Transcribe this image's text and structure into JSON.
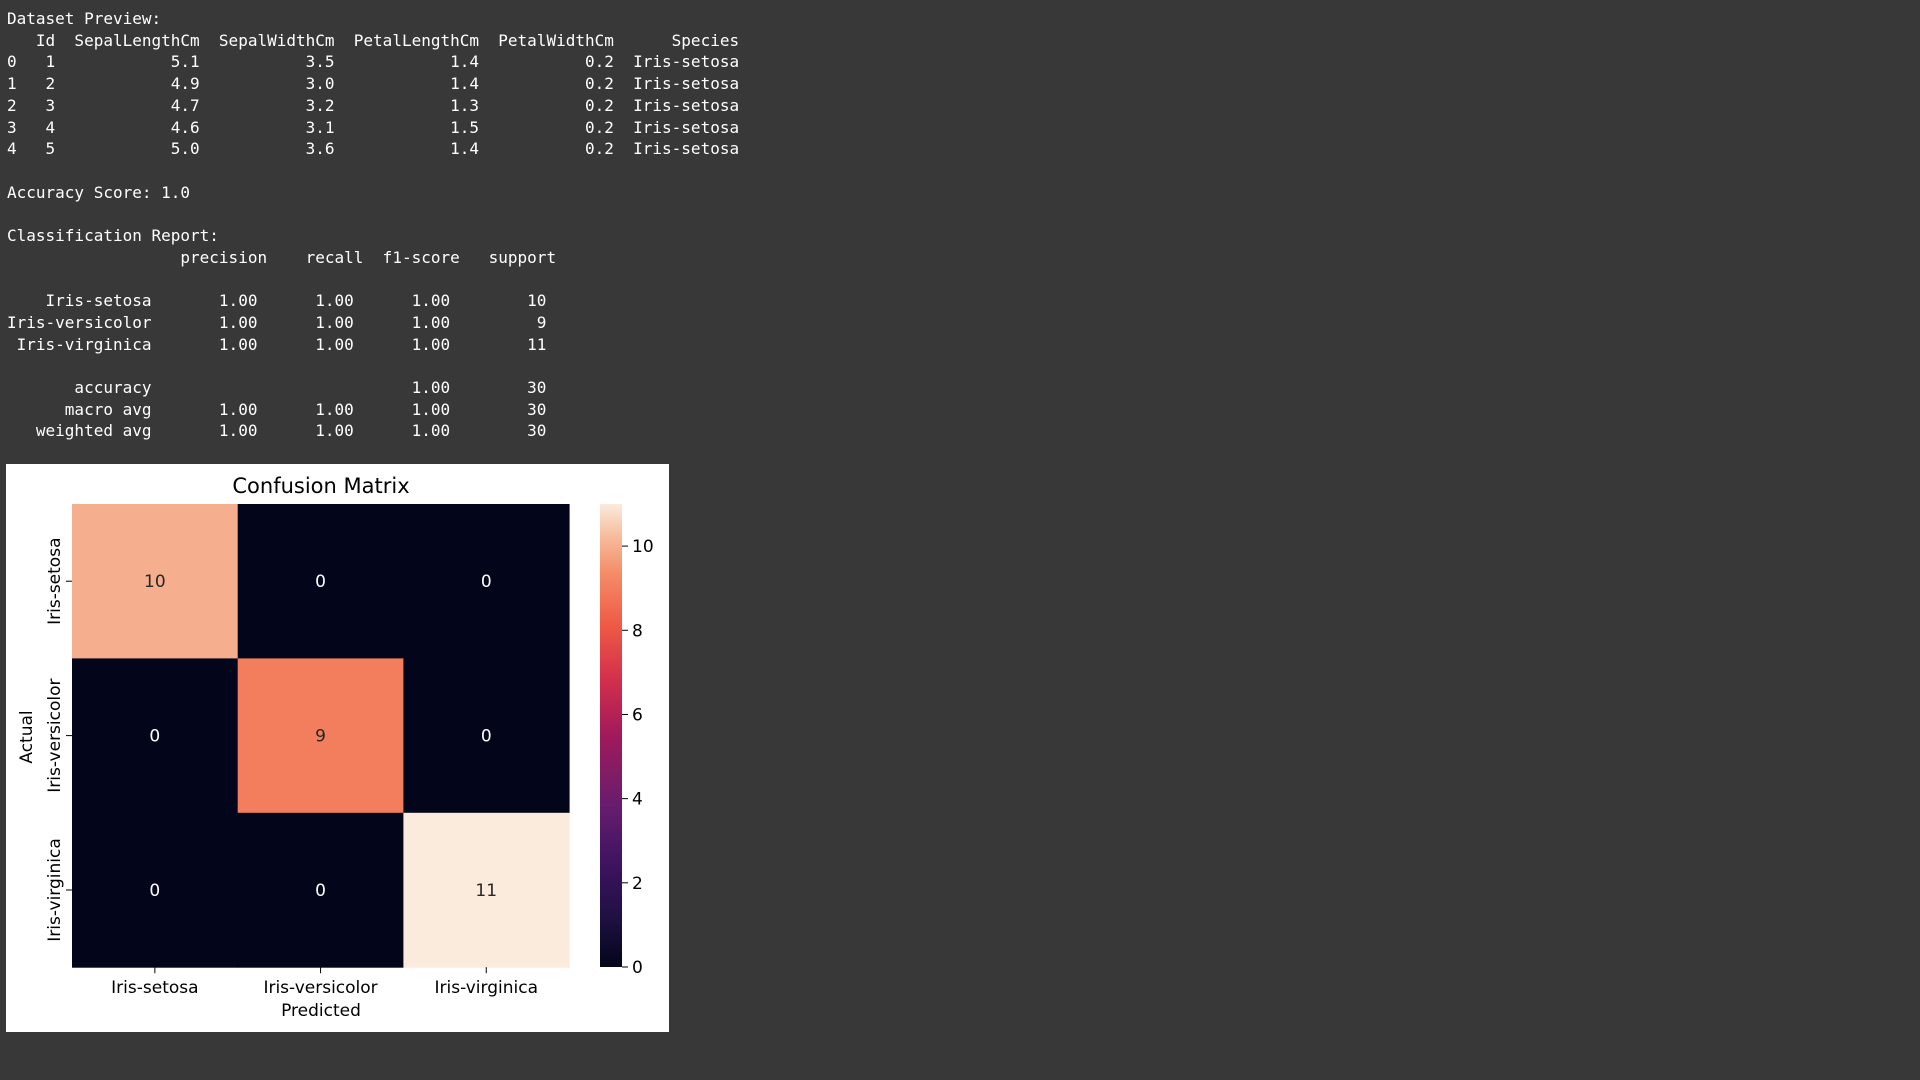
{
  "console": {
    "lines": [
      "Dataset Preview:",
      "   Id  SepalLengthCm  SepalWidthCm  PetalLengthCm  PetalWidthCm      Species",
      "0   1            5.1           3.5            1.4           0.2  Iris-setosa",
      "1   2            4.9           3.0            1.4           0.2  Iris-setosa",
      "2   3            4.7           3.2            1.3           0.2  Iris-setosa",
      "3   4            4.6           3.1            1.5           0.2  Iris-setosa",
      "4   5            5.0           3.6            1.4           0.2  Iris-setosa",
      "",
      "Accuracy Score: 1.0",
      "",
      "Classification Report:",
      "                  precision    recall  f1-score   support",
      "",
      "    Iris-setosa       1.00      1.00      1.00        10",
      "Iris-versicolor       1.00      1.00      1.00         9",
      " Iris-virginica       1.00      1.00      1.00        11",
      "",
      "       accuracy                           1.00        30",
      "      macro avg       1.00      1.00      1.00        30",
      "   weighted avg       1.00      1.00      1.00        30"
    ]
  },
  "chart_data": {
    "type": "heatmap",
    "title": "Confusion Matrix",
    "xlabel": "Predicted",
    "ylabel": "Actual",
    "x_categories": [
      "Iris-setosa",
      "Iris-versicolor",
      "Iris-virginica"
    ],
    "y_categories": [
      "Iris-setosa",
      "Iris-versicolor",
      "Iris-virginica"
    ],
    "values": [
      [
        10,
        0,
        0
      ],
      [
        0,
        9,
        0
      ],
      [
        0,
        0,
        11
      ]
    ],
    "colorbar": {
      "min": 0,
      "max": 11,
      "ticks": [
        0,
        2,
        4,
        6,
        8,
        10
      ],
      "colormap": "rocket"
    },
    "annotations": true,
    "legend_position": "right"
  }
}
